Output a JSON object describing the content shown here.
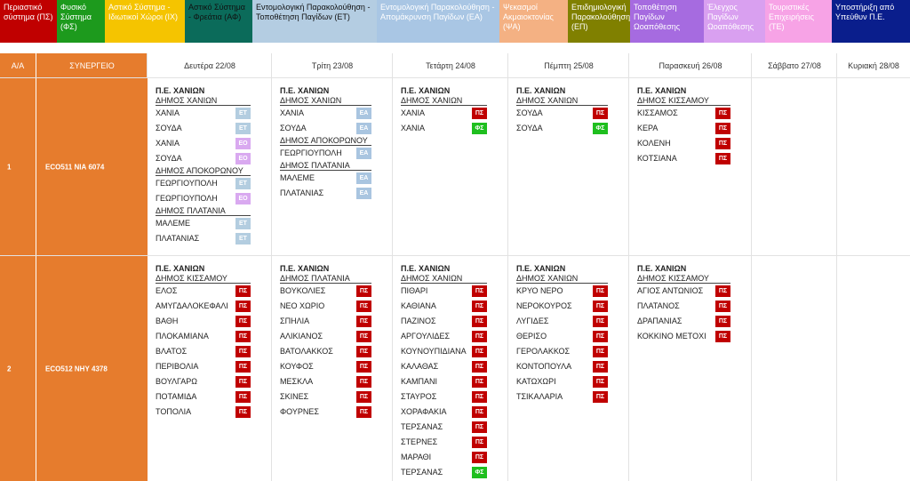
{
  "legend": [
    {
      "label": "Περιαστικό σύστημα (ΠΣ)",
      "bg": "#c00000",
      "fg": "#ffffff"
    },
    {
      "label": "Φυσικό Σύστημα (ΦΣ)",
      "bg": "#1d9a1d",
      "fg": "#ffffff"
    },
    {
      "label": "Αστικό Σύστημα - Ιδιωτικοί Χώροι (ΙΧ)",
      "bg": "#f5c400",
      "fg": "#ffffff"
    },
    {
      "label": "Αστικό Σύστημα - Φρεάτια (ΑΦ)",
      "bg": "#0b6b5a",
      "fg": "#111111"
    },
    {
      "label": "Εντομολογική Παρακολούθηση - Τοποθέτηση Παγίδων (ΕΤ)",
      "bg": "#b4cde2",
      "fg": "#111111"
    },
    {
      "label": "Εντομολογική Παρακολούθηση - Απομάκρυνση Παγίδων (ΕΑ)",
      "bg": "#a9c6e4",
      "fg": "#ffffff"
    },
    {
      "label": "Ψεκασμοί Ακμαιοκτονίας (ΨΑ)",
      "bg": "#f4b183",
      "fg": "#ffffff"
    },
    {
      "label": "Επιδημιολογική Παρακολούθηση (ΕΠ)",
      "bg": "#808000",
      "fg": "#ffffff"
    },
    {
      "label": "Τοποθέτηση Παγίδων Ωοαπόθεσης",
      "bg": "#a66be0",
      "fg": "#ffffff"
    },
    {
      "label": "Έλεγχος Παγίδων Ωοαπόθεσης",
      "bg": "#d9a0f0",
      "fg": "#ffffff"
    },
    {
      "label": "Τουριστικές Επιχειρήσεις (ΤΕ)",
      "bg": "#f7a3e6",
      "fg": "#ffffff"
    },
    {
      "label": "Υποστήριξη από Υπεύθυν Π.Ε.",
      "bg": "#0a1e8c",
      "fg": "#ffffff"
    }
  ],
  "headers": {
    "aa": "Α/Α",
    "team": "ΣΥΝΕΡΓΕΙΟ",
    "days": [
      "Δευτέρα 22/08",
      "Τρίτη 23/08",
      "Τετάρτη 24/08",
      "Πέμπτη 25/08",
      "Παρασκευή 26/08",
      "Σάββατο 27/08",
      "Κυριακή 28/08"
    ]
  },
  "rows": [
    {
      "aa": "1",
      "team": "ECO511  ΝΙΑ 6074",
      "days": [
        [
          {
            "t": "Π.Ε. ΧΑΝΙΩΝ",
            "h": "title"
          },
          {
            "t": "ΔΗΜΟΣ ΧΑΝΙΩΝ",
            "h": "under"
          },
          {
            "t": "ΧΑΝΙΑ",
            "tag": "ΕΤ",
            "c": "et"
          },
          {
            "t": "ΣΟΥΔΑ",
            "tag": "ΕΤ",
            "c": "et"
          },
          {
            "t": "ΧΑΝΙΑ",
            "tag": "ΕΟ",
            "c": "eo"
          },
          {
            "t": "ΣΟΥΔΑ",
            "tag": "ΕΟ",
            "c": "eo"
          },
          {
            "t": "ΔΗΜΟΣ ΑΠΟΚΟΡΩΝΟΥ",
            "h": "under"
          },
          {
            "t": "ΓΕΩΡΓΙΟΥΠΟΛΗ",
            "tag": "ΕΤ",
            "c": "et"
          },
          {
            "t": "ΓΕΩΡΓΙΟΥΠΟΛΗ",
            "tag": "ΕΟ",
            "c": "eo"
          },
          {
            "t": "ΔΗΜΟΣ ΠΛΑΤΑΝΙΑ",
            "h": "under"
          },
          {
            "t": "ΜΑΛΕΜΕ",
            "tag": "ΕΤ",
            "c": "et"
          },
          {
            "t": "ΠΛΑΤΑΝΙΑΣ",
            "tag": "ΕΤ",
            "c": "et"
          }
        ],
        [
          {
            "t": "Π.Ε. ΧΑΝΙΩΝ",
            "h": "title"
          },
          {
            "t": "ΔΗΜΟΣ ΧΑΝΙΩΝ",
            "h": "under"
          },
          {
            "t": "ΧΑΝΙΑ",
            "tag": "ΕΑ",
            "c": "ea"
          },
          {
            "t": "ΣΟΥΔΑ",
            "tag": "ΕΑ",
            "c": "ea"
          },
          {
            "t": "ΔΗΜΟΣ ΑΠΟΚΟΡΩΝΟΥ",
            "h": "under"
          },
          {
            "t": "ΓΕΩΡΓΙΟΥΠΟΛΗ",
            "tag": "ΕΑ",
            "c": "ea"
          },
          {
            "t": "ΔΗΜΟΣ ΠΛΑΤΑΝΙΑ",
            "h": "under"
          },
          {
            "t": "ΜΑΛΕΜΕ",
            "tag": "ΕΑ",
            "c": "ea"
          },
          {
            "t": "ΠΛΑΤΑΝΙΑΣ",
            "tag": "ΕΑ",
            "c": "ea"
          }
        ],
        [
          {
            "t": "Π.Ε. ΧΑΝΙΩΝ",
            "h": "title"
          },
          {
            "t": "ΔΗΜΟΣ ΧΑΝΙΩΝ",
            "h": "under"
          },
          {
            "t": "ΧΑΝΙΑ",
            "tag": "ΠΣ",
            "c": "ps"
          },
          {
            "t": "ΧΑΝΙΑ",
            "tag": "ΦΣ",
            "c": "fs"
          }
        ],
        [
          {
            "t": "Π.Ε. ΧΑΝΙΩΝ",
            "h": "title"
          },
          {
            "t": "ΔΗΜΟΣ ΧΑΝΙΩΝ",
            "h": "under"
          },
          {
            "t": "ΣΟΥΔΑ",
            "tag": "ΠΣ",
            "c": "ps"
          },
          {
            "t": "ΣΟΥΔΑ",
            "tag": "ΦΣ",
            "c": "fs"
          }
        ],
        [
          {
            "t": "Π.Ε. ΧΑΝΙΩΝ",
            "h": "title"
          },
          {
            "t": "ΔΗΜΟΣ ΚΙΣΣΑΜΟΥ",
            "h": "under"
          },
          {
            "t": "ΚΙΣΣΑΜΟΣ",
            "tag": "ΠΣ",
            "c": "ps"
          },
          {
            "t": "ΚΕΡΑ",
            "tag": "ΠΣ",
            "c": "ps"
          },
          {
            "t": "ΚΟΛΕΝΗ",
            "tag": "ΠΣ",
            "c": "ps"
          },
          {
            "t": "ΚΟΤΣΙΑΝΑ",
            "tag": "ΠΣ",
            "c": "ps"
          }
        ],
        [],
        []
      ]
    },
    {
      "aa": "2",
      "team": "ECO512  ΝΗΥ 4378",
      "days": [
        [
          {
            "t": "Π.Ε. ΧΑΝΙΩΝ",
            "h": "title"
          },
          {
            "t": "ΔΗΜΟΣ ΚΙΣΣΑΜΟΥ",
            "h": "under"
          },
          {
            "t": "ΕΛΟΣ",
            "tag": "ΠΣ",
            "c": "ps"
          },
          {
            "t": "ΑΜΥΓΔΑΛΟΚΕΦΑΛΙ",
            "tag": "ΠΣ",
            "c": "ps"
          },
          {
            "t": "ΒΑΘΗ",
            "tag": "ΠΣ",
            "c": "ps"
          },
          {
            "t": "ΠΛΟΚΑΜΙΑΝΑ",
            "tag": "ΠΣ",
            "c": "ps"
          },
          {
            "t": "ΒΛΑΤΟΣ",
            "tag": "ΠΣ",
            "c": "ps"
          },
          {
            "t": "ΠΕΡΙΒΟΛΙΑ",
            "tag": "ΠΣ",
            "c": "ps"
          },
          {
            "t": "ΒΟΥΛΓΑΡΩ",
            "tag": "ΠΣ",
            "c": "ps"
          },
          {
            "t": "ΠΟΤΑΜΙΔΑ",
            "tag": "ΠΣ",
            "c": "ps"
          },
          {
            "t": "ΤΟΠΟΛΙΑ",
            "tag": "ΠΣ",
            "c": "ps"
          }
        ],
        [
          {
            "t": "Π.Ε. ΧΑΝΙΩΝ",
            "h": "title"
          },
          {
            "t": "ΔΗΜΟΣ ΠΛΑΤΑΝΙΑ",
            "h": "under"
          },
          {
            "t": "ΒΟΥΚΟΛΙΕΣ",
            "tag": "ΠΣ",
            "c": "ps"
          },
          {
            "t": "ΝΕΟ ΧΩΡΙΟ",
            "tag": "ΠΣ",
            "c": "ps"
          },
          {
            "t": "ΣΠΗΛΙΑ",
            "tag": "ΠΣ",
            "c": "ps"
          },
          {
            "t": "ΑΛΙΚΙΑΝΟΣ",
            "tag": "ΠΣ",
            "c": "ps"
          },
          {
            "t": "ΒΑΤΟΛΑΚΚΟΣ",
            "tag": "ΠΣ",
            "c": "ps"
          },
          {
            "t": "ΚΟΥΦΟΣ",
            "tag": "ΠΣ",
            "c": "ps"
          },
          {
            "t": "ΜΕΣΚΛΑ",
            "tag": "ΠΣ",
            "c": "ps"
          },
          {
            "t": "ΣΚΙΝΕΣ",
            "tag": "ΠΣ",
            "c": "ps"
          },
          {
            "t": "ΦΟΥΡΝΕΣ",
            "tag": "ΠΣ",
            "c": "ps"
          }
        ],
        [
          {
            "t": "Π.Ε. ΧΑΝΙΩΝ",
            "h": "title"
          },
          {
            "t": "ΔΗΜΟΣ ΧΑΝΙΩΝ",
            "h": "under"
          },
          {
            "t": "ΠΙΘΑΡΙ",
            "tag": "ΠΣ",
            "c": "ps"
          },
          {
            "t": "ΚΑΘΙΑΝΑ",
            "tag": "ΠΣ",
            "c": "ps"
          },
          {
            "t": "ΠΑΖΙΝΟΣ",
            "tag": "ΠΣ",
            "c": "ps"
          },
          {
            "t": "ΑΡΓΟΥΛΙΔΕΣ",
            "tag": "ΠΣ",
            "c": "ps"
          },
          {
            "t": "ΚΟΥΝΟΥΠΙΔΙΑΝΑ",
            "tag": "ΠΣ",
            "c": "ps"
          },
          {
            "t": "ΚΑΛΑΘΑΣ",
            "tag": "ΠΣ",
            "c": "ps"
          },
          {
            "t": "ΚΑΜΠΑΝΙ",
            "tag": "ΠΣ",
            "c": "ps"
          },
          {
            "t": "ΣΤΑΥΡΟΣ",
            "tag": "ΠΣ",
            "c": "ps"
          },
          {
            "t": "ΧΟΡΑΦΑΚΙΑ",
            "tag": "ΠΣ",
            "c": "ps"
          },
          {
            "t": "ΤΕΡΣΑΝΑΣ",
            "tag": "ΠΣ",
            "c": "ps"
          },
          {
            "t": "ΣΤΕΡΝΕΣ",
            "tag": "ΠΣ",
            "c": "ps"
          },
          {
            "t": "ΜΑΡΑΘΙ",
            "tag": "ΠΣ",
            "c": "ps"
          },
          {
            "t": "ΤΕΡΣΑΝΑΣ",
            "tag": "ΦΣ",
            "c": "fs"
          }
        ],
        [
          {
            "t": "Π.Ε. ΧΑΝΙΩΝ",
            "h": "title"
          },
          {
            "t": "ΔΗΜΟΣ ΧΑΝΙΩΝ",
            "h": "under"
          },
          {
            "t": "ΚΡΥΟ ΝΕΡΟ",
            "tag": "ΠΣ",
            "c": "ps"
          },
          {
            "t": "ΝΕΡΟΚΟΥΡΟΣ",
            "tag": "ΠΣ",
            "c": "ps"
          },
          {
            "t": "ΛΥΓΙΔΕΣ",
            "tag": "ΠΣ",
            "c": "ps"
          },
          {
            "t": "ΘΕΡΙΣΟ",
            "tag": "ΠΣ",
            "c": "ps"
          },
          {
            "t": "ΓΕΡΟΛΑΚΚΟΣ",
            "tag": "ΠΣ",
            "c": "ps"
          },
          {
            "t": "ΚΟΝΤΟΠΟΥΛΑ",
            "tag": "ΠΣ",
            "c": "ps"
          },
          {
            "t": "ΚΑΤΩΧΩΡΙ",
            "tag": "ΠΣ",
            "c": "ps"
          },
          {
            "t": "ΤΣΙΚΑΛΑΡΙΑ",
            "tag": "ΠΣ",
            "c": "ps"
          }
        ],
        [
          {
            "t": "Π.Ε. ΧΑΝΙΩΝ",
            "h": "title"
          },
          {
            "t": "ΔΗΜΟΣ ΚΙΣΣΑΜΟΥ",
            "h": "under"
          },
          {
            "t": "ΑΓΙΟΣ ΑΝΤΩΝΙΟΣ",
            "tag": "ΠΣ",
            "c": "ps"
          },
          {
            "t": "ΠΛΑΤΑΝΟΣ",
            "tag": "ΠΣ",
            "c": "ps"
          },
          {
            "t": "ΔΡΑΠΑΝΙΑΣ",
            "tag": "ΠΣ",
            "c": "ps"
          },
          {
            "t": "ΚΟΚΚΙΝΟ ΜΕΤΟΧΙ",
            "tag": "ΠΣ",
            "c": "ps"
          }
        ],
        [],
        []
      ]
    }
  ]
}
